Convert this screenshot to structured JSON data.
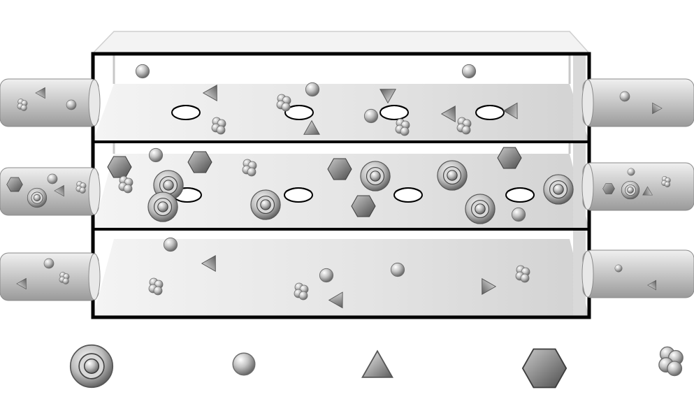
{
  "figure": {
    "type": "three-chamber particle transport schematic",
    "text": "",
    "colors": {
      "frame": "#000000",
      "chamber_fill": "#dedede",
      "port_fill": "#cfcfcf",
      "particle_dark": "#6a6a6a",
      "particle_light": "#f2f2f2",
      "membrane_pore": "#ffffff"
    }
  },
  "chambers": [
    {
      "name": "top-chamber",
      "pores": 4,
      "particle_kinds": [
        "sphere",
        "triangle",
        "cluster"
      ]
    },
    {
      "name": "middle-chamber",
      "pores": 4,
      "particle_kinds": [
        "ringed-sphere",
        "sphere",
        "hexagon",
        "cluster"
      ]
    },
    {
      "name": "bottom-chamber",
      "pores": 0,
      "particle_kinds": [
        "sphere",
        "triangle",
        "cluster"
      ]
    }
  ],
  "ports": {
    "left": [
      "inlet-top",
      "inlet-middle",
      "inlet-bottom"
    ],
    "right": [
      "outlet-top",
      "outlet-middle",
      "outlet-bottom"
    ]
  },
  "legend": {
    "items": [
      {
        "icon": "ringed-sphere-icon",
        "label": ""
      },
      {
        "icon": "sphere-icon",
        "label": ""
      },
      {
        "icon": "triangle-icon",
        "label": ""
      },
      {
        "icon": "hexagon-icon",
        "label": ""
      },
      {
        "icon": "cluster-icon",
        "label": ""
      }
    ]
  }
}
